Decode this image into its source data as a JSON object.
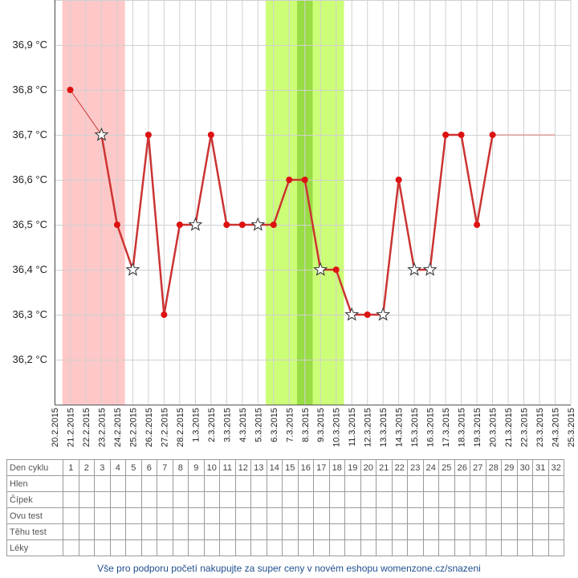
{
  "chart_data": {
    "type": "line",
    "y_ticks": [
      "36,2 °C",
      "36,3 °C",
      "36,4 °C",
      "36,5 °C",
      "36,6 °C",
      "36,7 °C",
      "36,8 °C",
      "36,9 °C"
    ],
    "ylim": [
      36.1,
      37.0
    ],
    "x": [
      "20.2.2015",
      "21.2.2015",
      "22.2.2015",
      "23.2.2015",
      "24.2.2015",
      "25.2.2015",
      "26.2.2015",
      "27.2.2015",
      "28.2.2015",
      "1.3.2015",
      "2.3.2015",
      "3.3.2015",
      "4.3.2015",
      "5.3.2015",
      "6.3.2015",
      "7.3.2015",
      "8.3.2015",
      "9.3.2015",
      "10.3.2015",
      "11.3.2015",
      "12.3.2015",
      "13.3.2015",
      "14.3.2015",
      "15.3.2015",
      "16.3.2015",
      "17.3.2015",
      "18.3.2015",
      "19.3.2015",
      "20.3.2015",
      "21.3.2015",
      "22.3.2015",
      "23.3.2015",
      "24.3.2015",
      "25.3.2015"
    ],
    "series": [
      {
        "values": [
          null,
          36.8,
          null,
          36.7,
          36.5,
          36.4,
          36.7,
          36.3,
          36.5,
          36.5,
          36.7,
          36.5,
          36.5,
          36.5,
          36.5,
          36.6,
          36.6,
          36.4,
          36.4,
          36.3,
          36.3,
          36.3,
          36.6,
          36.4,
          36.4,
          36.7,
          36.7,
          36.5,
          36.7,
          null,
          null,
          null,
          null,
          null
        ],
        "markers": [
          "",
          "dot",
          "",
          "star",
          "dot",
          "star",
          "dot",
          "dot",
          "dot",
          "star",
          "dot",
          "dot",
          "dot",
          "star",
          "dot",
          "dot",
          "dot",
          "star",
          "dot",
          "star",
          "dot",
          "star",
          "dot",
          "star",
          "star",
          "dot",
          "dot",
          "dot",
          "dot",
          "",
          "",
          "",
          "",
          ""
        ]
      }
    ],
    "projection": {
      "value": 36.7,
      "from": "20.3.2015",
      "to": "24.3.2015"
    },
    "bands": [
      {
        "from": "21.2.2015",
        "to": "24.2.2015",
        "color": "#ffc8c8"
      },
      {
        "from": "6.3.2015",
        "to": "10.3.2015",
        "color": "#ccff77"
      },
      {
        "from": "8.3.2015",
        "to": "8.3.2015",
        "color": "#99dd44"
      }
    ],
    "grid": true,
    "colors": {
      "line": "#cc3333",
      "dot": "#dd1111",
      "star_fill": "#ffffff",
      "star_stroke": "#333333"
    }
  },
  "table": {
    "rows": [
      {
        "label": "Den cyklu",
        "cells": [
          "1",
          "2",
          "3",
          "4",
          "5",
          "6",
          "7",
          "8",
          "9",
          "10",
          "11",
          "12",
          "13",
          "14",
          "15",
          "16",
          "17",
          "18",
          "19",
          "20",
          "21",
          "22",
          "23",
          "24",
          "25",
          "26",
          "27",
          "28",
          "29",
          "30",
          "31",
          "32"
        ]
      },
      {
        "label": "Hlen",
        "cells": []
      },
      {
        "label": "Čípek",
        "cells": []
      },
      {
        "label": "Ovu test",
        "cells": []
      },
      {
        "label": "Těhu test",
        "cells": []
      },
      {
        "label": "Léky",
        "cells": []
      }
    ]
  },
  "footer": {
    "text": "Vše pro podporu početí nakupujte za super ceny v novém eshopu womenzone.cz/snazeni"
  }
}
